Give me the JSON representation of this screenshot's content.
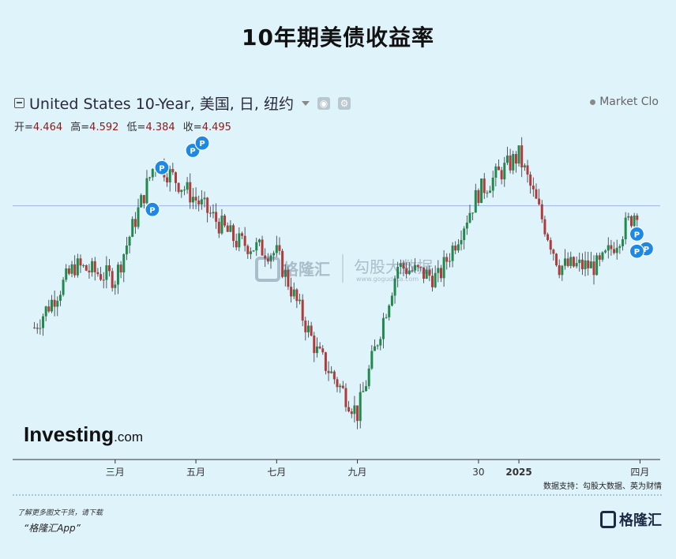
{
  "title": "10年期美债收益率",
  "header": {
    "instrument": "United States 10-Year, 美国, 日, 纽约",
    "market_status": "Market Clo"
  },
  "ohlc": [
    {
      "label": "开=",
      "value": "4.464"
    },
    {
      "label": "高=",
      "value": "4.592"
    },
    {
      "label": "低=",
      "value": "4.384"
    },
    {
      "label": "收=",
      "value": "4.495"
    }
  ],
  "watermarks": {
    "brand": "Investing",
    "brand_suffix": ".com",
    "gelonghui": "格隆汇",
    "gogudata": "勾股大数据",
    "gogudata_url": "www.gogudata.com"
  },
  "source_credit": "数据支持：勾股大数据、英为财情",
  "footer": {
    "note": "了解更多图文干货，请下载",
    "app": "“格隆汇App”",
    "logo": "格隆汇"
  },
  "colors": {
    "up": "#1f8a4c",
    "down": "#b23a3a",
    "wick": "#333333",
    "marker": "#1e88e5",
    "line": "#9fb6e8"
  },
  "chart_data": {
    "type": "candlestick",
    "x": [
      "2024-01",
      "2024-02",
      "2024-03",
      "2024-04",
      "2024-05",
      "2024-06",
      "2024-07",
      "2024-08",
      "2024-09",
      "2024-10",
      "2024-11",
      "2024-12",
      "2025-01",
      "2025-02",
      "2025-03",
      "2025-04"
    ],
    "close": [
      4.0,
      4.25,
      4.2,
      4.68,
      4.52,
      4.35,
      4.3,
      3.9,
      3.65,
      4.25,
      4.2,
      4.55,
      4.7,
      4.25,
      4.25,
      4.5
    ],
    "x_tick_labels": [
      {
        "x": "2024-03",
        "label": "三月"
      },
      {
        "x": "2024-05",
        "label": "五月"
      },
      {
        "x": "2024-07",
        "label": "七月"
      },
      {
        "x": "2024-09",
        "label": "九月"
      },
      {
        "x": "2024-12",
        "label": "30"
      },
      {
        "x": "2025-01",
        "label": "2025"
      },
      {
        "x": "2025-04",
        "label": "四月"
      }
    ],
    "ylim": [
      3.55,
      4.85
    ],
    "reference_line": 4.495,
    "markers": [
      {
        "x": "2024-04",
        "y": 4.48,
        "label": "P"
      },
      {
        "x": "2024-04",
        "y": 4.65,
        "label": "P"
      },
      {
        "x": "2024-05",
        "y": 4.72,
        "label": "P"
      },
      {
        "x": "2024-05",
        "y": 4.75,
        "label": "P"
      },
      {
        "x": "2025-04",
        "y": 4.38,
        "label": "P"
      },
      {
        "x": "2025-04",
        "y": 4.32,
        "label": "P"
      },
      {
        "x": "2025-04",
        "y": 4.31,
        "label": "P"
      }
    ],
    "title": "",
    "xlabel": "",
    "ylabel": ""
  }
}
